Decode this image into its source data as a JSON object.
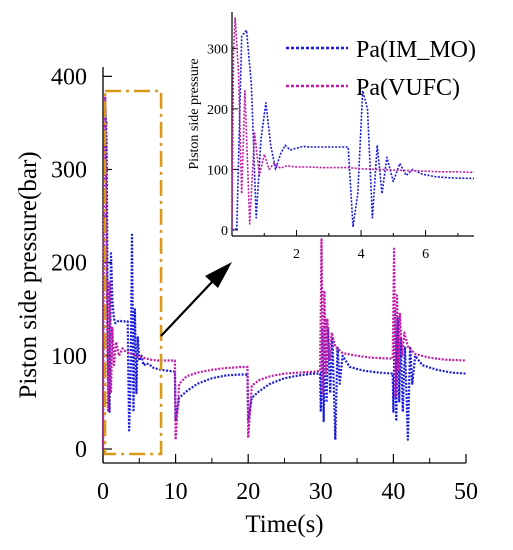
{
  "chart_data": [
    {
      "type": "line",
      "xlabel": "Time(s)",
      "ylabel": "Piston side pressure(bar)",
      "xlim": [
        0,
        50
      ],
      "ylim": [
        -15,
        410
      ],
      "xticks": [
        0,
        10,
        20,
        30,
        40,
        50
      ],
      "yticks": [
        0,
        100,
        200,
        300,
        400
      ],
      "highlight_box_x": [
        0,
        8
      ],
      "series": [
        {
          "name": "Pa(IM_MO)",
          "color": "#1a1ad9",
          "style": "dotted",
          "x": [
            0,
            0.1,
            0.3,
            0.5,
            0.7,
            0.9,
            1.1,
            1.3,
            1.5,
            1.7,
            2.0,
            2.3,
            2.6,
            3.0,
            3.4,
            3.6,
            3.8,
            4.0,
            4.2,
            4.4,
            4.6,
            4.8,
            5.0,
            5.3,
            5.6,
            6.0,
            6.5,
            7.0,
            7.5,
            8.0,
            9.0,
            9.9,
            10.0,
            10.5,
            11.5,
            13,
            15,
            17,
            19,
            19.9,
            20.0,
            20.5,
            21.5,
            23,
            25,
            27,
            29,
            29.9,
            30.0,
            30.2,
            30.4,
            30.6,
            30.8,
            31.0,
            31.3,
            31.6,
            32.0,
            32.3,
            32.6,
            33,
            34,
            36,
            38,
            39.9,
            40.0,
            40.2,
            40.4,
            40.6,
            40.8,
            41.0,
            41.3,
            41.6,
            42.0,
            42.3,
            42.6,
            43,
            44,
            46,
            48,
            50
          ],
          "y": [
            0,
            220,
            375,
            330,
            80,
            40,
            210,
            160,
            140,
            135,
            137,
            138,
            137,
            137,
            137,
            20,
            70,
            230,
            40,
            150,
            60,
            120,
            95,
            100,
            90,
            92,
            90,
            87,
            86,
            85,
            84,
            83,
            30,
            55,
            62,
            70,
            76,
            79,
            80,
            80,
            30,
            55,
            62,
            70,
            76,
            79,
            81,
            81,
            40,
            130,
            30,
            140,
            50,
            130,
            60,
            120,
            10,
            110,
            70,
            100,
            88,
            84,
            82,
            81,
            40,
            150,
            30,
            140,
            50,
            120,
            40,
            110,
            10,
            110,
            70,
            100,
            90,
            85,
            82,
            81
          ]
        },
        {
          "name": "Pa(VUFC)",
          "color": "#c01aa6",
          "style": "dotted",
          "x": [
            0,
            0.1,
            0.3,
            0.5,
            0.7,
            0.9,
            1.1,
            1.3,
            1.5,
            1.8,
            2.2,
            2.7,
            3.2,
            3.8,
            4.5,
            5.5,
            6.5,
            7.5,
            8.5,
            9.9,
            10.0,
            10.5,
            11.5,
            13,
            15,
            17,
            19,
            19.9,
            20.0,
            20.5,
            21.5,
            23,
            25,
            27,
            29,
            29.9,
            30.0,
            30.1,
            30.3,
            30.5,
            30.7,
            30.9,
            31.2,
            31.5,
            32.0,
            33,
            35,
            37,
            39.9,
            40.0,
            40.1,
            40.3,
            40.5,
            40.7,
            40.9,
            41.2,
            41.5,
            42.0,
            43,
            45,
            47,
            50
          ],
          "y": [
            0,
            250,
            380,
            200,
            40,
            180,
            60,
            130,
            90,
            115,
            100,
            108,
            104,
            103,
            100,
            98,
            96,
            95,
            95,
            95,
            10,
            70,
            78,
            82,
            85,
            87,
            88,
            88,
            12,
            68,
            74,
            78,
            81,
            82,
            83,
            84,
            150,
            225,
            60,
            170,
            80,
            140,
            95,
            125,
            110,
            103,
            100,
            98,
            97,
            155,
            215,
            55,
            165,
            85,
            145,
            100,
            125,
            110,
            102,
            98,
            96,
            95
          ]
        }
      ]
    },
    {
      "type": "line",
      "ylabel": "Piston side pressure",
      "xlim": [
        0,
        7.5
      ],
      "ylim": [
        -10,
        360
      ],
      "xticks": [
        2,
        4,
        6
      ],
      "yticks": [
        0,
        100,
        200,
        300
      ],
      "series": [
        {
          "name": "Pa(IM_MO)",
          "color": "#1a1ad9",
          "style": "dotted",
          "x": [
            0,
            0.15,
            0.3,
            0.45,
            0.6,
            0.75,
            0.9,
            1.05,
            1.2,
            1.35,
            1.5,
            1.65,
            1.8,
            2.0,
            2.2,
            2.4,
            2.6,
            2.8,
            3.0,
            3.3,
            3.6,
            3.75,
            3.9,
            4.05,
            4.2,
            4.35,
            4.5,
            4.65,
            4.8,
            5.0,
            5.2,
            5.4,
            5.6,
            5.9,
            6.3,
            6.8,
            7.5
          ],
          "y": [
            0,
            2,
            320,
            330,
            240,
            20,
            150,
            210,
            140,
            100,
            125,
            140,
            132,
            135,
            138,
            137,
            137,
            137,
            137,
            137,
            137,
            5,
            60,
            230,
            200,
            20,
            140,
            60,
            120,
            80,
            110,
            90,
            100,
            92,
            88,
            86,
            85
          ]
        },
        {
          "name": "Pa(VUFC)",
          "color": "#c01aa6",
          "style": "dotted",
          "x": [
            0,
            0.05,
            0.1,
            0.2,
            0.3,
            0.4,
            0.55,
            0.7,
            0.85,
            1.0,
            1.15,
            1.3,
            1.5,
            1.7,
            2.0,
            2.4,
            2.8,
            3.2,
            3.6,
            4.0,
            4.5,
            5.0,
            5.5,
            6.0,
            6.5,
            7.0,
            7.5
          ],
          "y": [
            0,
            300,
            350,
            260,
            60,
            230,
            10,
            160,
            90,
            125,
            100,
            110,
            102,
            106,
            104,
            104,
            103,
            103,
            103,
            101,
            100,
            99,
            98,
            97,
            96,
            96,
            95
          ]
        }
      ]
    }
  ]
}
